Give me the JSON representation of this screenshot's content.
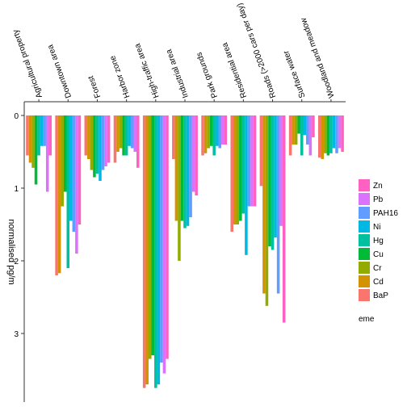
{
  "chart_data": {
    "type": "bar",
    "orientation": "vertical-flipped",
    "ylabel": "normalised pg/m",
    "ylim": [
      0,
      4
    ],
    "yticks": [
      0,
      1,
      2,
      3
    ],
    "categories": [
      "Agricultural property",
      "Downtown area",
      "Forest",
      "Harbor zone",
      "High-traffic area",
      "Industrial area",
      "Park grounds",
      "Residential area",
      "Roads (>2000 cars per day)",
      "Surface water",
      "Woodland and meadow"
    ],
    "legend": {
      "title": "eme",
      "position": "right",
      "entries": [
        "BaP",
        "Cd",
        "Cr",
        "Cu",
        "Hg",
        "Ni",
        "PAH16",
        "Pb",
        "Zn"
      ]
    },
    "series": [
      {
        "name": "BaP",
        "color": "#F8766D",
        "values": [
          0.55,
          2.2,
          0.55,
          0.65,
          3.75,
          0.6,
          0.55,
          1.6,
          0.97,
          0.55,
          0.58
        ]
      },
      {
        "name": "Cd",
        "color": "#D39200",
        "values": [
          0.65,
          2.17,
          0.6,
          0.5,
          3.7,
          1.45,
          0.52,
          1.5,
          2.45,
          0.4,
          0.6
        ]
      },
      {
        "name": "Cr",
        "color": "#93AA00",
        "values": [
          0.72,
          1.25,
          0.75,
          0.45,
          3.35,
          2.0,
          0.45,
          1.5,
          2.62,
          0.4,
          0.52
        ]
      },
      {
        "name": "Cu",
        "color": "#00BA38",
        "values": [
          0.95,
          1.05,
          0.85,
          0.55,
          3.3,
          1.45,
          0.42,
          1.45,
          1.8,
          0.25,
          0.55
        ]
      },
      {
        "name": "Hg",
        "color": "#00C19F",
        "values": [
          0.55,
          2.1,
          0.8,
          0.55,
          3.75,
          1.55,
          0.55,
          1.35,
          1.85,
          0.55,
          0.52
        ]
      },
      {
        "name": "Ni",
        "color": "#00B9E3",
        "values": [
          0.42,
          1.45,
          0.9,
          0.42,
          3.7,
          1.52,
          0.42,
          1.92,
          1.68,
          0.27,
          0.45
        ]
      },
      {
        "name": "PAH16",
        "color": "#619CFF",
        "values": [
          0.42,
          1.6,
          0.75,
          0.45,
          3.4,
          1.4,
          0.45,
          1.25,
          2.45,
          0.4,
          0.52
        ]
      },
      {
        "name": "Pb",
        "color": "#DB72FB",
        "values": [
          1.05,
          1.9,
          0.7,
          0.5,
          3.55,
          1.05,
          0.4,
          1.25,
          1.52,
          0.55,
          0.45
        ]
      },
      {
        "name": "Zn",
        "color": "#FF61C3",
        "values": [
          0.55,
          1.5,
          0.65,
          0.72,
          3.35,
          1.1,
          0.4,
          1.25,
          2.85,
          0.3,
          0.5
        ]
      }
    ]
  }
}
